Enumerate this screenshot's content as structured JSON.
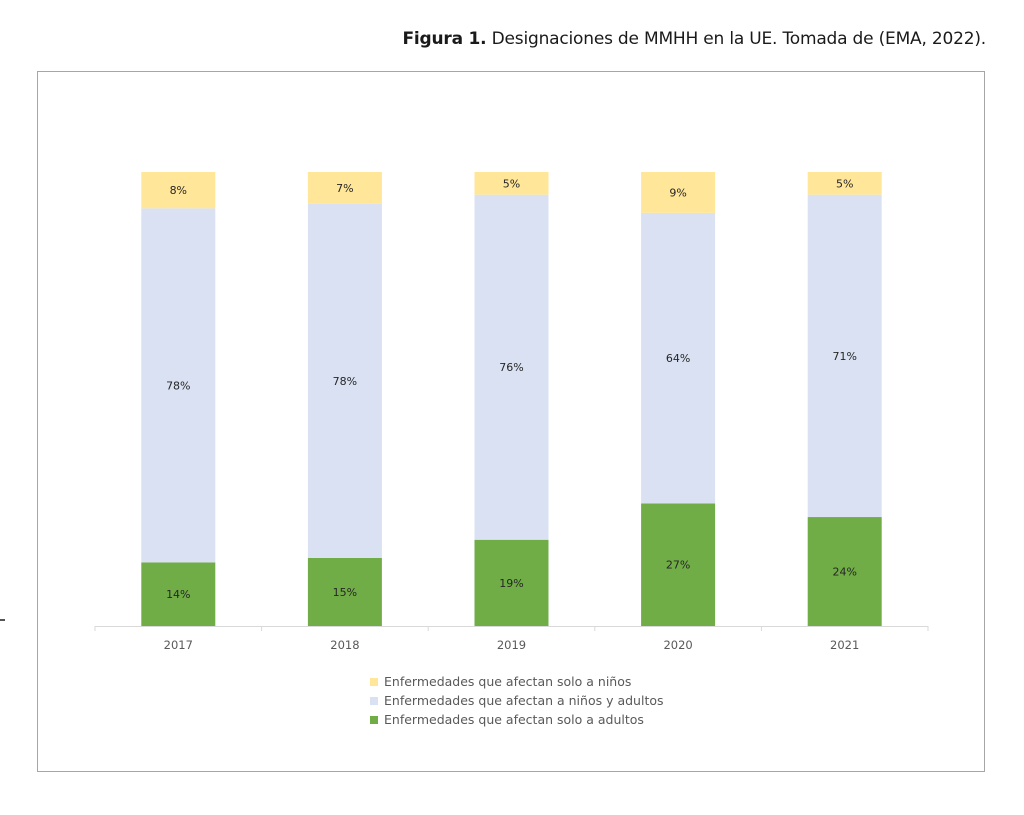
{
  "caption": {
    "label": "Figura 1.",
    "text": " Designaciones de MMHH en la UE. Tomada de (EMA, 2022)."
  },
  "colors": {
    "solo_ninos": "#FFE699",
    "ninos_y_adultos": "#D9E1F2",
    "solo_adultos": "#70AD47",
    "frame": "#A6A6A6",
    "axis": "#D9D9D9"
  },
  "chart_data": {
    "type": "bar",
    "stacked": true,
    "percent_stacked": true,
    "title": "",
    "xlabel": "",
    "ylabel": "",
    "ylim": [
      0,
      100
    ],
    "grid": false,
    "legend_position": "bottom",
    "categories": [
      "2017",
      "2018",
      "2019",
      "2020",
      "2021"
    ],
    "series": [
      {
        "key": "solo_adultos",
        "name": "Enfermedades que afectan solo a adultos",
        "values": [
          14,
          15,
          19,
          27,
          24
        ],
        "labels": [
          "14%",
          "15%",
          "19%",
          "27%",
          "24%"
        ]
      },
      {
        "key": "ninos_y_adultos",
        "name": "Enfermedades que afectan a niños y adultos",
        "values": [
          78,
          78,
          76,
          64,
          71
        ],
        "labels": [
          "78%",
          "78%",
          "76%",
          "64%",
          "71%"
        ]
      },
      {
        "key": "solo_ninos",
        "name": "Enfermedades que afectan solo a niños",
        "values": [
          8,
          7,
          5,
          9,
          5
        ],
        "labels": [
          "8%",
          "7%",
          "5%",
          "9%",
          "5%"
        ]
      }
    ],
    "legend_order": [
      "solo_ninos",
      "ninos_y_adultos",
      "solo_adultos"
    ]
  }
}
